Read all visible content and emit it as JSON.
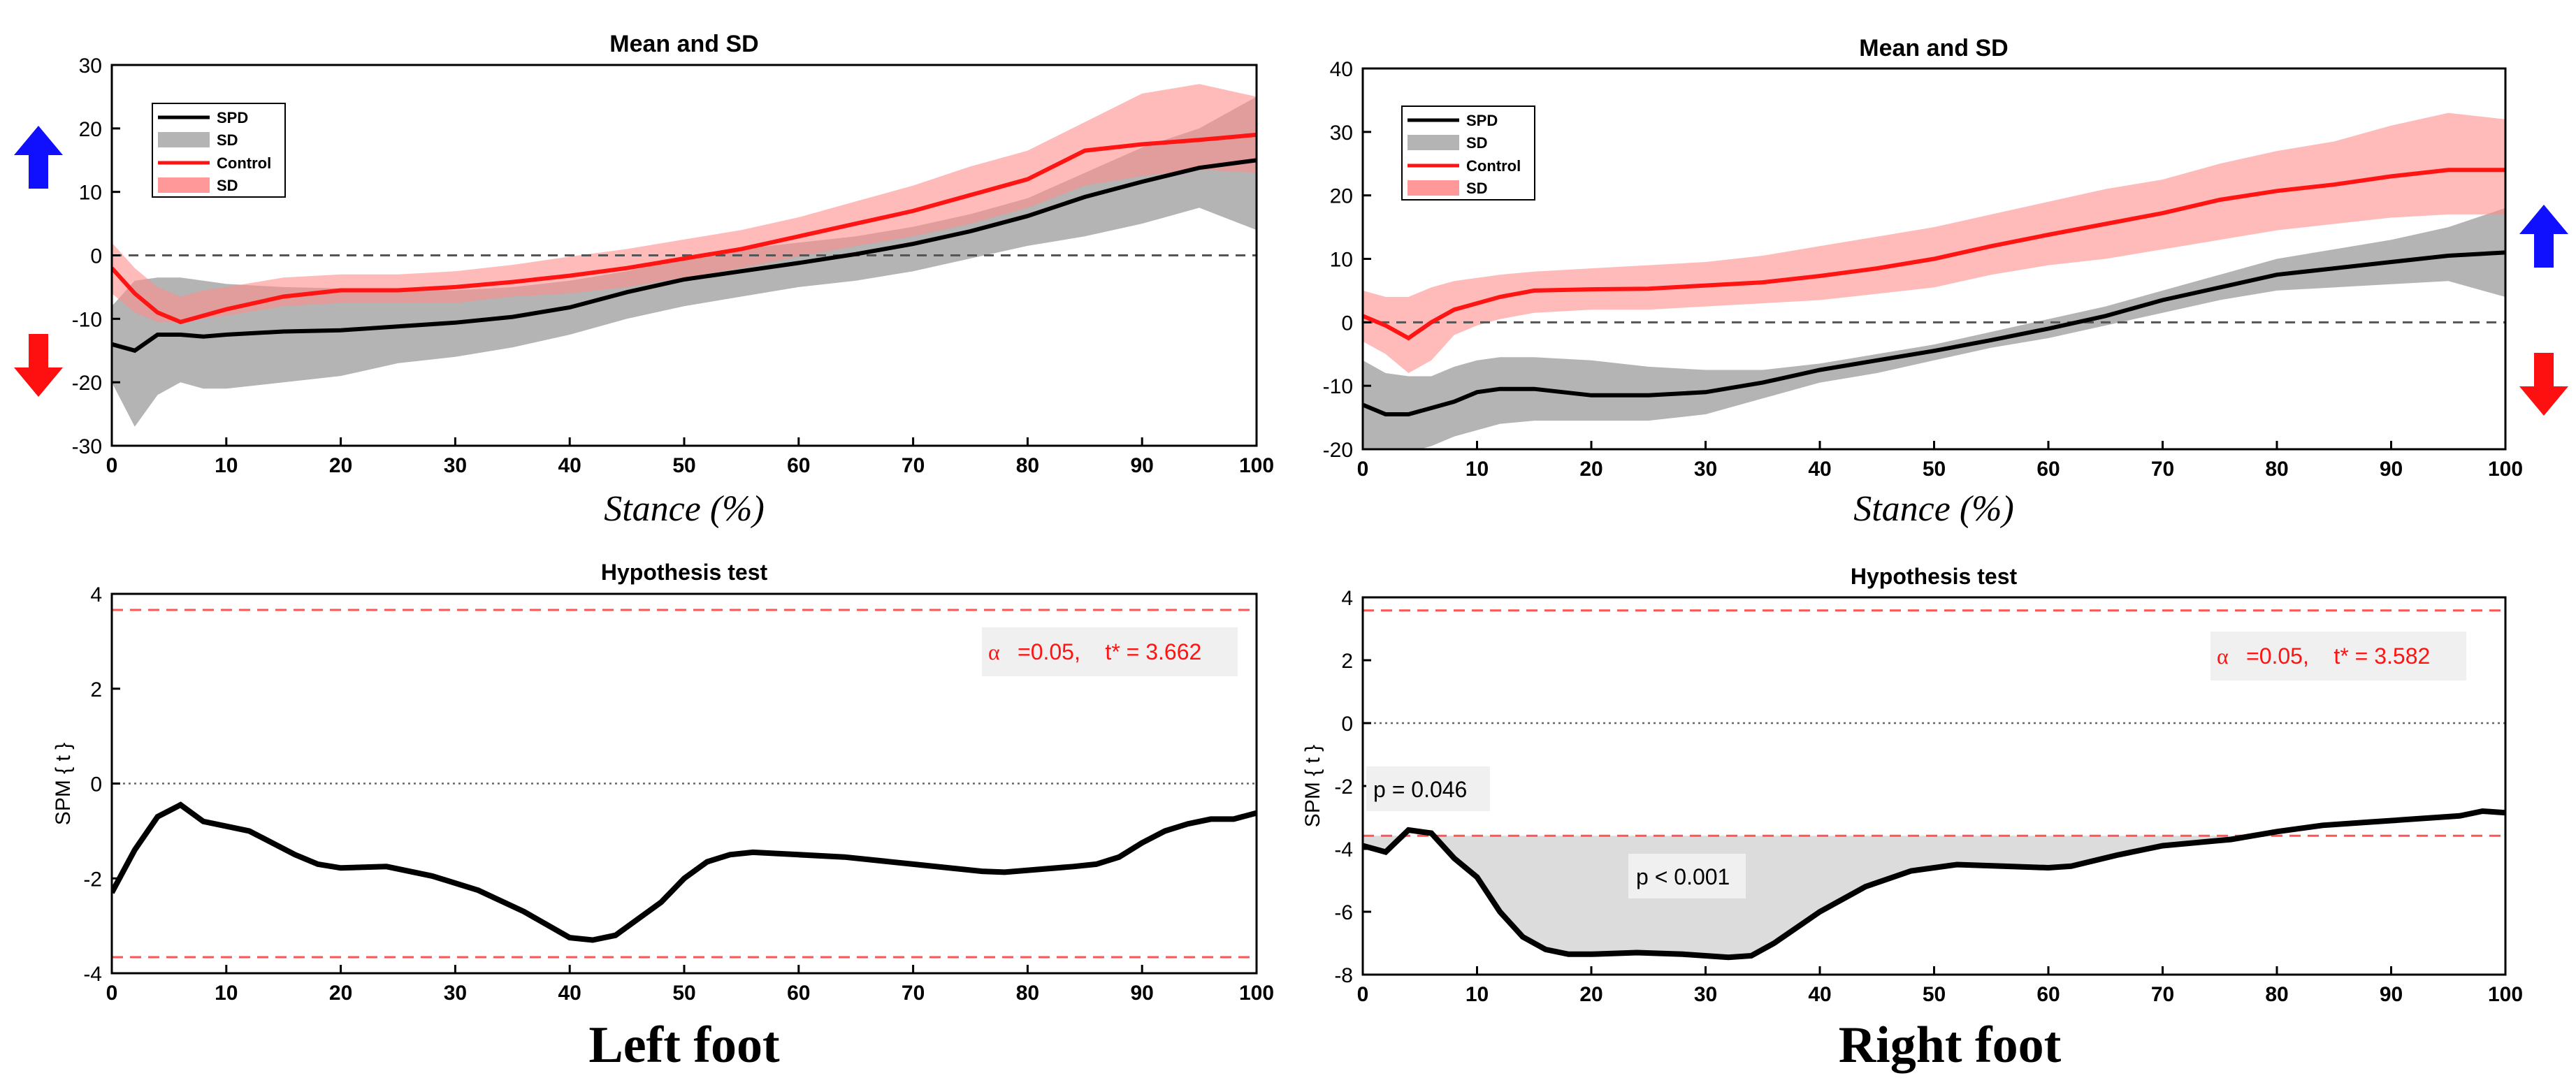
{
  "colors": {
    "spd": "#000000",
    "spd_sd": "#b4b4b4",
    "control": "#ff1414",
    "control_sd": "#ff8c8c",
    "up_arrow": "#1010ff",
    "down_arrow": "#ff1010",
    "threshold": "#ff5555",
    "shade": "#dcdcdc",
    "annot_bg": "#f0f0f0"
  },
  "labels": {
    "left_foot": "Left foot",
    "right_foot": "Right foot"
  },
  "chart_data": [
    {
      "id": "left-mean-sd",
      "type": "line",
      "title": "Mean and SD",
      "xlabel": "Stance (%)",
      "ylabel": "",
      "xlim": [
        0,
        100
      ],
      "ylim": [
        -30,
        30
      ],
      "xticks": [
        0,
        10,
        20,
        30,
        40,
        50,
        60,
        70,
        80,
        90,
        100
      ],
      "yticks": [
        -30,
        -20,
        -10,
        0,
        10,
        20,
        30
      ],
      "reference_line": 0,
      "legend_position": "top-left",
      "legend": [
        "SPD",
        "SD",
        "Control",
        "SD"
      ],
      "x": [
        0,
        2,
        4,
        6,
        8,
        10,
        15,
        20,
        25,
        30,
        35,
        40,
        45,
        50,
        55,
        60,
        65,
        70,
        75,
        80,
        85,
        90,
        95,
        100
      ],
      "series": [
        {
          "name": "SPD",
          "color_key": "spd",
          "values": [
            -14,
            -15,
            -12.5,
            -12.5,
            -12.8,
            -12.5,
            -12,
            -11.8,
            -11.2,
            -10.6,
            -9.7,
            -8.2,
            -5.8,
            -3.8,
            -2.5,
            -1.2,
            0.2,
            1.8,
            3.8,
            6.2,
            9.2,
            11.6,
            13.8,
            15
          ],
          "sd_upper": [
            -8,
            -4,
            -3.5,
            -3.5,
            -4,
            -4.5,
            -5,
            -5.2,
            -5.5,
            -5.5,
            -5,
            -4,
            -2.5,
            -0.5,
            1,
            2,
            3,
            4.5,
            6.5,
            9,
            13,
            17,
            20,
            25
          ],
          "sd_lower": [
            -20,
            -27,
            -22,
            -20,
            -21,
            -21,
            -20,
            -19,
            -17,
            -16,
            -14.5,
            -12.5,
            -10,
            -8,
            -6.5,
            -5,
            -4,
            -2.5,
            -0.5,
            1.5,
            3,
            5,
            7.5,
            4
          ]
        },
        {
          "name": "Control",
          "color_key": "control",
          "values": [
            -2,
            -6,
            -9,
            -10.5,
            -9.5,
            -8.5,
            -6.5,
            -5.5,
            -5.5,
            -5,
            -4.2,
            -3.2,
            -2,
            -0.5,
            1,
            3,
            5,
            7,
            9.5,
            12,
            16.5,
            17.5,
            18.2,
            19
          ],
          "sd_upper": [
            2,
            -2,
            -5,
            -6.5,
            -5.5,
            -5,
            -3.5,
            -3,
            -3,
            -2.5,
            -1.5,
            -0.2,
            1,
            2.5,
            4,
            6,
            8.5,
            11,
            14,
            16.5,
            21,
            25.5,
            27,
            25
          ],
          "sd_lower": [
            -6,
            -9,
            -10.5,
            -10.5,
            -10,
            -9.5,
            -8,
            -7.5,
            -7.5,
            -7.5,
            -6.5,
            -6,
            -5,
            -3.5,
            -2,
            -0.2,
            1.5,
            3,
            5,
            7.5,
            11,
            12.5,
            13.5,
            13
          ]
        }
      ]
    },
    {
      "id": "right-mean-sd",
      "type": "line",
      "title": "Mean and SD",
      "xlabel": "Stance (%)",
      "ylabel": "",
      "xlim": [
        0,
        100
      ],
      "ylim": [
        -20,
        40
      ],
      "xticks": [
        0,
        10,
        20,
        30,
        40,
        50,
        60,
        70,
        80,
        90,
        100
      ],
      "yticks": [
        -20,
        -10,
        0,
        10,
        20,
        30,
        40
      ],
      "reference_line": 0,
      "legend_position": "top-left",
      "legend": [
        "SPD",
        "SD",
        "Control",
        "SD"
      ],
      "x": [
        0,
        2,
        4,
        6,
        8,
        10,
        12,
        15,
        20,
        25,
        30,
        35,
        40,
        45,
        50,
        55,
        60,
        65,
        70,
        75,
        80,
        85,
        90,
        95,
        100
      ],
      "series": [
        {
          "name": "SPD",
          "color_key": "spd",
          "values": [
            -13,
            -14.5,
            -14.5,
            -13.5,
            -12.5,
            -11,
            -10.5,
            -10.5,
            -11.5,
            -11.5,
            -11,
            -9.5,
            -7.5,
            -6,
            -4.5,
            -2.8,
            -1,
            1,
            3.5,
            5.5,
            7.5,
            8.5,
            9.5,
            10.5,
            11
          ],
          "sd_upper": [
            -6,
            -8,
            -8.5,
            -8.5,
            -7,
            -6,
            -5.5,
            -5.5,
            -6,
            -7,
            -7.5,
            -7.5,
            -6.5,
            -5,
            -3.5,
            -1.5,
            0.5,
            2.5,
            5,
            7.5,
            10,
            11.5,
            13,
            15,
            18
          ],
          "sd_lower": [
            -20,
            -20.5,
            -20.5,
            -19.5,
            -18,
            -17,
            -16,
            -15.5,
            -15.5,
            -15.5,
            -14.5,
            -12,
            -9.5,
            -8,
            -6,
            -4,
            -2.5,
            -0.5,
            1.5,
            3.5,
            5,
            5.5,
            6,
            6.5,
            4
          ]
        },
        {
          "name": "Control",
          "color_key": "control",
          "values": [
            1,
            -0.5,
            -2.5,
            0,
            2,
            3,
            4,
            5,
            5.2,
            5.3,
            5.8,
            6.3,
            7.3,
            8.5,
            10,
            12,
            13.8,
            15.5,
            17.2,
            19.3,
            20.7,
            21.7,
            23,
            24,
            24
          ],
          "sd_upper": [
            5,
            4,
            4,
            5.5,
            6.5,
            7,
            7.5,
            8,
            8.5,
            9,
            9.5,
            10.5,
            12,
            13.5,
            15,
            17,
            19,
            21,
            22.5,
            25,
            27,
            28.5,
            31,
            33,
            32
          ],
          "sd_lower": [
            -3,
            -5,
            -8,
            -6,
            -2,
            -0.5,
            0.5,
            1.5,
            2,
            2,
            2.5,
            3,
            3.5,
            4.5,
            5.5,
            7.5,
            9,
            10,
            11.5,
            13,
            14.5,
            15.5,
            16.5,
            17,
            17
          ]
        }
      ]
    },
    {
      "id": "left-hypothesis",
      "type": "line",
      "title": "Hypothesis test",
      "xlabel": "",
      "ylabel": "SPM { t }",
      "xlim": [
        0,
        100
      ],
      "ylim": [
        -4,
        4
      ],
      "xticks": [
        0,
        10,
        20,
        30,
        40,
        50,
        60,
        70,
        80,
        90,
        100
      ],
      "yticks": [
        -4,
        -2,
        0,
        2,
        4
      ],
      "threshold": 3.662,
      "annotation": "=0.05,    t* = 3.662",
      "alpha_symbol": "α",
      "x": [
        0,
        2,
        4,
        6,
        8,
        12,
        16,
        18,
        20,
        24,
        28,
        32,
        36,
        40,
        42,
        44,
        48,
        50,
        52,
        54,
        56,
        60,
        64,
        70,
        76,
        78,
        84,
        86,
        88,
        90,
        92,
        94,
        96,
        98,
        100
      ],
      "series": [
        {
          "name": "SPM{t}",
          "values": [
            -2.3,
            -1.4,
            -0.7,
            -0.45,
            -0.8,
            -1.0,
            -1.5,
            -1.7,
            -1.78,
            -1.75,
            -1.95,
            -2.25,
            -2.7,
            -3.25,
            -3.3,
            -3.2,
            -2.5,
            -2.0,
            -1.65,
            -1.5,
            -1.45,
            -1.5,
            -1.55,
            -1.7,
            -1.85,
            -1.87,
            -1.75,
            -1.7,
            -1.55,
            -1.25,
            -1.0,
            -0.85,
            -0.75,
            -0.75,
            -0.62
          ]
        }
      ],
      "clusters": []
    },
    {
      "id": "right-hypothesis",
      "type": "line",
      "title": "Hypothesis test",
      "xlabel": "",
      "ylabel": "SPM { t }",
      "xlim": [
        0,
        100
      ],
      "ylim": [
        -8,
        4
      ],
      "xticks": [
        0,
        10,
        20,
        30,
        40,
        50,
        60,
        70,
        80,
        90,
        100
      ],
      "yticks": [
        -8,
        -6,
        -4,
        -2,
        0,
        2,
        4
      ],
      "threshold": 3.582,
      "annotation": "=0.05,    t* = 3.582",
      "alpha_symbol": "α",
      "x": [
        0,
        2,
        4,
        6,
        8,
        10,
        12,
        14,
        16,
        18,
        20,
        24,
        28,
        32,
        34,
        36,
        40,
        44,
        48,
        52,
        56,
        60,
        62,
        66,
        70,
        76,
        80,
        84,
        88,
        92,
        96,
        98,
        100
      ],
      "series": [
        {
          "name": "SPM{t}",
          "values": [
            -3.9,
            -4.1,
            -3.4,
            -3.5,
            -4.3,
            -4.9,
            -6.0,
            -6.8,
            -7.2,
            -7.35,
            -7.35,
            -7.3,
            -7.35,
            -7.45,
            -7.4,
            -7.0,
            -6.0,
            -5.2,
            -4.7,
            -4.5,
            -4.55,
            -4.6,
            -4.55,
            -4.2,
            -3.9,
            -3.7,
            -3.45,
            -3.25,
            -3.15,
            -3.05,
            -2.95,
            -2.8,
            -2.85
          ]
        }
      ],
      "clusters": [
        {
          "label": "p = 0.046",
          "x_start": 3,
          "x_end": 6
        },
        {
          "label": "p < 0.001",
          "x_start": 7.5,
          "x_end": 76.5
        }
      ]
    }
  ]
}
